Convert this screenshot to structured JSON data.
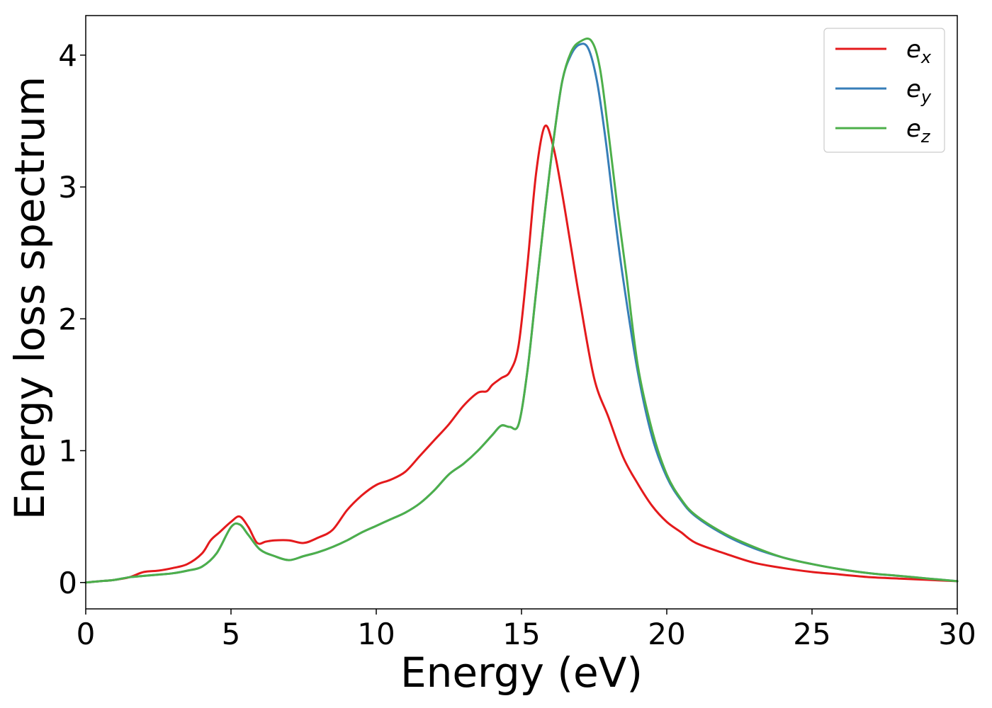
{
  "chart_data": {
    "type": "line",
    "title": "",
    "xlabel": "Energy (eV)",
    "ylabel": "Energy loss spectrum",
    "xlim": [
      0,
      30
    ],
    "ylim": [
      -0.2,
      4.3
    ],
    "xticks": [
      0,
      5,
      10,
      15,
      20,
      25,
      30
    ],
    "yticks": [
      0,
      1,
      2,
      3,
      4
    ],
    "grid": false,
    "legend_position": "top-right",
    "series": [
      {
        "name": "e_x",
        "label_base": "e",
        "label_sub": "x",
        "color": "#e41a1c",
        "x": [
          0,
          0.5,
          1.0,
          1.5,
          2.0,
          2.5,
          3.0,
          3.5,
          4.0,
          4.3,
          4.6,
          5.0,
          5.3,
          5.6,
          5.9,
          6.2,
          6.5,
          7.0,
          7.5,
          8.0,
          8.5,
          9.0,
          9.5,
          10.0,
          10.5,
          11.0,
          11.5,
          12.0,
          12.5,
          13.0,
          13.5,
          13.8,
          14.0,
          14.3,
          14.6,
          14.9,
          15.2,
          15.5,
          15.8,
          16.1,
          16.4,
          16.7,
          17.0,
          17.5,
          18.0,
          18.5,
          19.0,
          19.5,
          20.0,
          20.5,
          21.0,
          22.0,
          23.0,
          24.0,
          25.0,
          26.0,
          27.0,
          28.0,
          29.0,
          30.0
        ],
        "values": [
          0,
          0.01,
          0.02,
          0.04,
          0.08,
          0.09,
          0.11,
          0.14,
          0.22,
          0.32,
          0.38,
          0.46,
          0.5,
          0.42,
          0.3,
          0.31,
          0.32,
          0.32,
          0.3,
          0.34,
          0.4,
          0.55,
          0.66,
          0.74,
          0.78,
          0.84,
          0.96,
          1.08,
          1.2,
          1.34,
          1.44,
          1.45,
          1.5,
          1.55,
          1.6,
          1.8,
          2.4,
          3.1,
          3.46,
          3.3,
          2.95,
          2.55,
          2.15,
          1.55,
          1.25,
          0.95,
          0.75,
          0.58,
          0.46,
          0.38,
          0.3,
          0.22,
          0.15,
          0.11,
          0.08,
          0.06,
          0.04,
          0.03,
          0.02,
          0.01
        ]
      },
      {
        "name": "e_y",
        "label_base": "e",
        "label_sub": "y",
        "color": "#377eb8",
        "x": [
          0,
          0.5,
          1.0,
          1.5,
          2.0,
          2.5,
          3.0,
          3.5,
          4.0,
          4.5,
          5.0,
          5.3,
          5.6,
          6.0,
          6.5,
          7.0,
          7.5,
          8.0,
          8.5,
          9.0,
          9.5,
          10.0,
          10.5,
          11.0,
          11.5,
          12.0,
          12.5,
          13.0,
          13.5,
          14.0,
          14.3,
          14.6,
          14.9,
          15.2,
          15.5,
          15.8,
          16.1,
          16.4,
          16.7,
          17.0,
          17.3,
          17.6,
          17.9,
          18.2,
          18.5,
          19.0,
          19.5,
          20.0,
          20.5,
          21.0,
          22.0,
          23.0,
          24.0,
          25.0,
          26.0,
          27.0,
          28.0,
          29.0,
          30.0
        ],
        "values": [
          0,
          0.01,
          0.02,
          0.04,
          0.05,
          0.06,
          0.07,
          0.09,
          0.12,
          0.22,
          0.42,
          0.44,
          0.36,
          0.25,
          0.2,
          0.17,
          0.2,
          0.23,
          0.27,
          0.32,
          0.38,
          0.43,
          0.48,
          0.53,
          0.6,
          0.7,
          0.82,
          0.9,
          1.0,
          1.12,
          1.19,
          1.18,
          1.2,
          1.6,
          2.2,
          2.8,
          3.35,
          3.8,
          4.0,
          4.08,
          4.05,
          3.8,
          3.35,
          2.8,
          2.3,
          1.6,
          1.1,
          0.8,
          0.62,
          0.5,
          0.36,
          0.26,
          0.19,
          0.14,
          0.1,
          0.07,
          0.05,
          0.03,
          0.01
        ]
      },
      {
        "name": "e_z",
        "label_base": "e",
        "label_sub": "z",
        "color": "#4daf4a",
        "x": [
          0,
          0.5,
          1.0,
          1.5,
          2.0,
          2.5,
          3.0,
          3.5,
          4.0,
          4.5,
          5.0,
          5.3,
          5.6,
          6.0,
          6.5,
          7.0,
          7.5,
          8.0,
          8.5,
          9.0,
          9.5,
          10.0,
          10.5,
          11.0,
          11.5,
          12.0,
          12.5,
          13.0,
          13.5,
          14.0,
          14.3,
          14.6,
          14.9,
          15.2,
          15.5,
          15.8,
          16.1,
          16.4,
          16.7,
          17.0,
          17.4,
          17.7,
          18.0,
          18.3,
          18.6,
          19.0,
          19.5,
          20.0,
          20.5,
          21.0,
          22.0,
          23.0,
          24.0,
          25.0,
          26.0,
          27.0,
          28.0,
          29.0,
          30.0
        ],
        "values": [
          0,
          0.01,
          0.02,
          0.04,
          0.05,
          0.06,
          0.07,
          0.09,
          0.12,
          0.22,
          0.42,
          0.44,
          0.36,
          0.25,
          0.2,
          0.17,
          0.2,
          0.23,
          0.27,
          0.32,
          0.38,
          0.43,
          0.48,
          0.53,
          0.6,
          0.7,
          0.82,
          0.9,
          1.0,
          1.12,
          1.19,
          1.18,
          1.2,
          1.6,
          2.2,
          2.8,
          3.35,
          3.8,
          4.02,
          4.1,
          4.11,
          3.9,
          3.4,
          2.85,
          2.35,
          1.65,
          1.15,
          0.82,
          0.63,
          0.51,
          0.37,
          0.27,
          0.19,
          0.14,
          0.1,
          0.07,
          0.05,
          0.03,
          0.01
        ]
      }
    ]
  }
}
